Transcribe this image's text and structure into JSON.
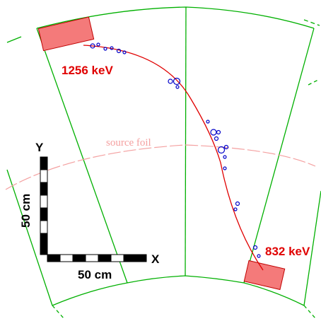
{
  "labels": {
    "energy_top": "1256 keV",
    "energy_bottom": "832 keV",
    "source_foil": "source foil",
    "axis_x": "X",
    "axis_y": "Y",
    "scale_x": "50 cm",
    "scale_y": "50 cm"
  },
  "colors": {
    "sector_lines": "#00b000",
    "track": "#e00000",
    "hits": "#0000c8",
    "calorimeter_fill": "#f47a7a",
    "calorimeter_stroke": "#c00000",
    "energy_text": "#e00000",
    "source_foil": "#f4a0a0"
  }
}
